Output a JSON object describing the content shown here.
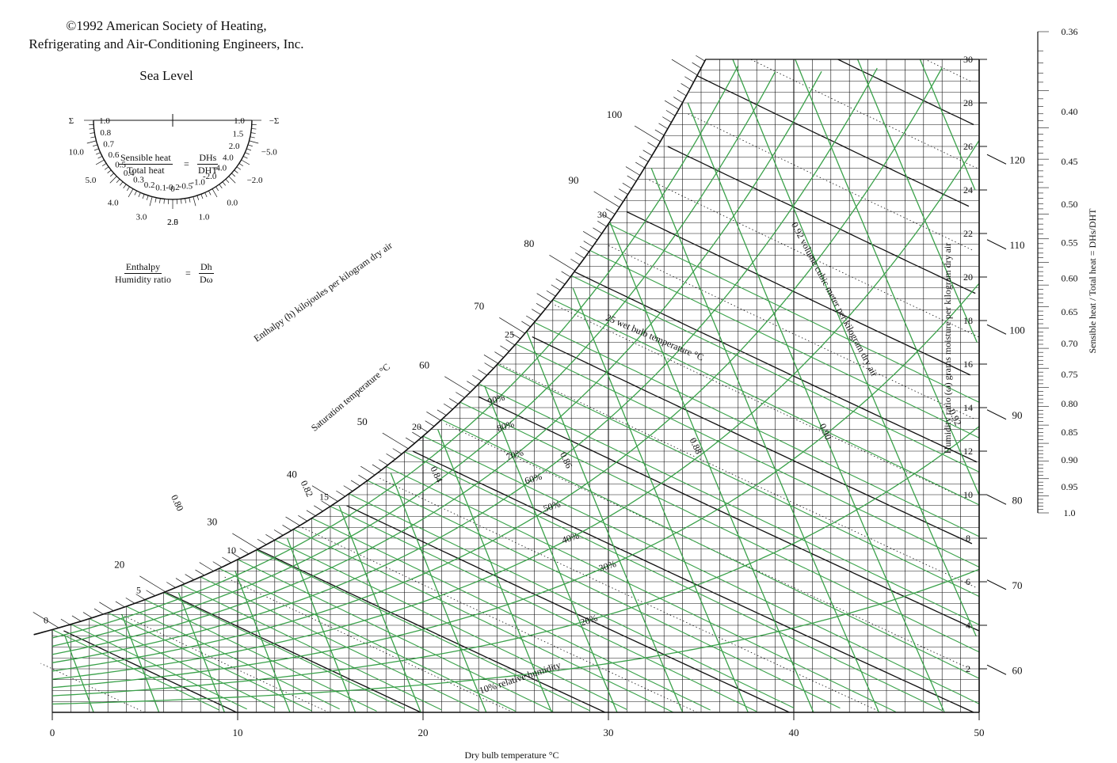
{
  "header": {
    "copyright_line1": "©1992 American Society of Heating,",
    "copyright_line2": "Refrigerating and Air-Conditioning Engineers, Inc.",
    "sea_level": "Sea Level"
  },
  "protractor": {
    "sensible_label": "Sensible heat",
    "total_label": "Total heat",
    "ratio_num": "DHs",
    "ratio_den": "DHT",
    "enthalpy_label": "Enthalpy",
    "humidity_label": "Humidity ratio",
    "ratio2_num": "Dh",
    "ratio2_den": "Dω",
    "equals": "=",
    "left_scale": [
      "1.0",
      "0.8",
      "0.7",
      "0.6",
      "0.5",
      "0.4",
      "0.3",
      "0.2",
      "0.1",
      "0"
    ],
    "right_scale": [
      "1.0",
      "1.5",
      "2.0",
      "4.0",
      "-4.0",
      "-2.0",
      "-1.0",
      "-0.5",
      "-0.2"
    ],
    "outer_left": [
      "Σ",
      "10.0",
      "5.0",
      "4.0",
      "3.0",
      "2.5"
    ],
    "outer_right": [
      "−Σ",
      "−5.0",
      "−2.0",
      "0.0",
      "1.0",
      "2.0"
    ]
  },
  "chart_data": {
    "type": "psychrometric",
    "xlabel": "Dry bulb temperature °C",
    "x_ticks": [
      0,
      10,
      20,
      30,
      40,
      50
    ],
    "xlim": [
      0,
      50
    ],
    "ylabel": "Humidity ratio (ω) grams moisture per kilogram dry air",
    "y_ticks": [
      2,
      4,
      6,
      8,
      10,
      12,
      14,
      16,
      18,
      20,
      22,
      24,
      26,
      28,
      30
    ],
    "ylim": [
      0,
      30
    ],
    "enthalpy_label": "Enthalpy (h) kilojoules per kilogram dry air",
    "enthalpy_values": [
      20,
      30,
      40,
      50,
      60,
      70,
      80,
      90,
      100
    ],
    "enthalpy_right_values": [
      60,
      70,
      80,
      90,
      100,
      110,
      120
    ],
    "saturation_label": "Saturation temperature °C",
    "saturation_values": [
      0,
      5,
      10,
      15,
      20,
      25,
      30
    ],
    "rh_values": [
      10,
      20,
      30,
      40,
      50,
      60,
      70,
      80,
      90
    ],
    "rh_labels": [
      "10% relative humidity",
      "20%",
      "30%",
      "40%",
      "50%",
      "60%",
      "70%",
      "80%",
      "90%"
    ],
    "wet_bulb_values": [
      0,
      5,
      10,
      15,
      20,
      25,
      30
    ],
    "wet_bulb_label": "25 wet bulb temperature °C",
    "volume_values": [
      0.78,
      0.8,
      0.82,
      0.84,
      0.86,
      0.88,
      0.9,
      0.92,
      0.94
    ],
    "volume_label": "0.92 volume cubic meter per kilogram dry air",
    "shr_label_num": "Sensible heat",
    "shr_label_den": "Total heat",
    "shr_ratio_num": "DHs",
    "shr_ratio_den": "DHT",
    "shr_values": [
      "0.36",
      "0.40",
      "0.45",
      "0.50",
      "0.55",
      "0.60",
      "0.65",
      "0.70",
      "0.75",
      "0.80",
      "0.85",
      "0.90",
      "0.95",
      "1.0"
    ],
    "colors": {
      "grid": "#111111",
      "rh": "#3aa14a",
      "volume": "#3aa14a"
    }
  }
}
